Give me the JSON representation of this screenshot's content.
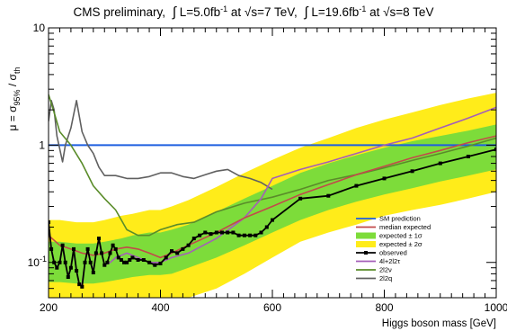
{
  "chart_data": {
    "type": "line",
    "title": {
      "lead": "CMS preliminary,",
      "lumi7_pre": "L=5.0fb",
      "lumi7_exp": "-1",
      "lumi7_mid": " at ",
      "sqrt7": "s=7 TeV,",
      "lumi8_pre": "L=19.6fb",
      "lumi8_exp": "-1",
      "lumi8_mid": " at ",
      "sqrt8": "s=8 TeV"
    },
    "xlabel": "Higgs boson mass [GeV]",
    "ylabel": {
      "main": "μ = σ",
      "sub95": "95%",
      "sep": " / σ",
      "subth": "th"
    },
    "x_range": [
      200,
      1000
    ],
    "y_range": [
      0.05,
      10
    ],
    "y_scale": "log",
    "x_ticks": [
      "200",
      "400",
      "600",
      "800",
      "1000"
    ],
    "y_tick_labels": [
      {
        "value": 10,
        "label": "10"
      },
      {
        "value": 1,
        "label": "1"
      },
      {
        "value": 0.1,
        "label": "10",
        "exp": "-1"
      }
    ],
    "legend_position": "bottom-right",
    "colors": {
      "sm": "#1f5fe0",
      "median": "#c24a4a",
      "band1": "#7ddc3a",
      "band2": "#ffec1a",
      "observed": "#000000",
      "4l2l2t": "#a45fb8",
      "2l2v": "#5a8c2a",
      "2l2q": "#606060"
    },
    "legend": [
      {
        "key": "sm",
        "label": "SM prediction",
        "style": "line"
      },
      {
        "key": "median",
        "label": "median expected",
        "style": "line"
      },
      {
        "key": "band1",
        "label": "expected ± 1σ",
        "style": "box"
      },
      {
        "key": "band2",
        "label": "expected ± 2σ",
        "style": "box"
      },
      {
        "key": "observed",
        "label": "observed",
        "style": "marker"
      },
      {
        "key": "4l2l2t",
        "label": "4l+2l2τ",
        "style": "line"
      },
      {
        "key": "2l2v",
        "label": "2l2ν",
        "style": "line"
      },
      {
        "key": "2l2q",
        "label": "2l2q",
        "style": "line"
      }
    ],
    "sm_prediction": 1,
    "bands": {
      "x": [
        200,
        220,
        250,
        280,
        300,
        330,
        350,
        380,
        400,
        420,
        450,
        500,
        550,
        600,
        650,
        700,
        750,
        800,
        850,
        900,
        950,
        1000
      ],
      "m2": [
        0.05,
        0.05,
        0.05,
        0.05,
        0.05,
        0.05,
        0.05,
        0.05,
        0.05,
        0.05,
        0.05,
        0.06,
        0.08,
        0.11,
        0.15,
        0.18,
        0.21,
        0.25,
        0.28,
        0.31,
        0.35,
        0.4
      ],
      "m1": [
        0.068,
        0.068,
        0.066,
        0.066,
        0.068,
        0.072,
        0.075,
        0.078,
        0.078,
        0.08,
        0.09,
        0.11,
        0.14,
        0.18,
        0.23,
        0.28,
        0.33,
        0.38,
        0.43,
        0.49,
        0.55,
        0.62
      ],
      "p1": [
        0.15,
        0.15,
        0.145,
        0.145,
        0.15,
        0.16,
        0.17,
        0.18,
        0.18,
        0.19,
        0.21,
        0.27,
        0.35,
        0.45,
        0.58,
        0.7,
        0.82,
        0.95,
        1.08,
        1.2,
        1.33,
        1.5
      ],
      "p2": [
        0.23,
        0.23,
        0.22,
        0.22,
        0.23,
        0.25,
        0.26,
        0.28,
        0.28,
        0.3,
        0.34,
        0.44,
        0.58,
        0.75,
        0.95,
        1.15,
        1.4,
        1.65,
        1.9,
        2.2,
        2.5,
        2.8
      ]
    },
    "series": [
      {
        "key": "2l2q",
        "x": [
          200,
          205,
          210,
          215,
          225,
          230,
          240,
          250,
          260,
          270,
          280,
          290,
          300,
          320,
          340,
          360,
          380,
          400,
          420,
          440,
          460,
          480,
          500,
          520,
          540,
          560,
          580,
          600
        ],
        "y": [
          1.6,
          2.4,
          2.0,
          1.2,
          0.72,
          1.0,
          1.4,
          2.4,
          1.3,
          1.0,
          0.85,
          0.65,
          0.55,
          0.55,
          0.52,
          0.52,
          0.54,
          0.58,
          0.58,
          0.54,
          0.52,
          0.56,
          0.6,
          0.62,
          0.55,
          0.52,
          0.48,
          0.42
        ]
      },
      {
        "key": "2l2v",
        "x": [
          200,
          210,
          220,
          240,
          260,
          280,
          300,
          320,
          340,
          360,
          380,
          400,
          430,
          460,
          500,
          550,
          600,
          650,
          700,
          750,
          800,
          850,
          900,
          950,
          1000
        ],
        "y": [
          2.7,
          1.9,
          1.3,
          1.0,
          0.7,
          0.45,
          0.35,
          0.28,
          0.19,
          0.17,
          0.17,
          0.19,
          0.21,
          0.22,
          0.27,
          0.32,
          0.36,
          0.42,
          0.5,
          0.56,
          0.64,
          0.74,
          0.85,
          0.98,
          1.15
        ]
      },
      {
        "key": "4l2l2t",
        "x": [
          200,
          205,
          210,
          215,
          220,
          225,
          230,
          235,
          240,
          245,
          250,
          255,
          260,
          265,
          270,
          275,
          280,
          285,
          290,
          295,
          300,
          310,
          320,
          340,
          360,
          380,
          400,
          420,
          450,
          500,
          550,
          580,
          600,
          650,
          700,
          750,
          800,
          850,
          900,
          950,
          1000
        ],
        "y": [
          0.21,
          0.13,
          0.1,
          0.09,
          0.1,
          0.14,
          0.1,
          0.075,
          0.09,
          0.13,
          0.085,
          0.065,
          0.065,
          0.1,
          0.13,
          0.1,
          0.085,
          0.12,
          0.16,
          0.12,
          0.095,
          0.1,
          0.11,
          0.12,
          0.11,
          0.1,
          0.1,
          0.11,
          0.12,
          0.16,
          0.24,
          0.35,
          0.52,
          0.62,
          0.72,
          0.85,
          1.0,
          1.15,
          1.4,
          1.7,
          2.1
        ]
      },
      {
        "key": "median",
        "x": [
          200,
          220,
          240,
          260,
          280,
          300,
          320,
          340,
          360,
          380,
          400,
          420,
          450,
          500,
          550,
          600,
          650,
          700,
          750,
          800,
          850,
          900,
          950,
          1000
        ],
        "y": [
          0.17,
          0.14,
          0.13,
          0.12,
          0.115,
          0.12,
          0.13,
          0.135,
          0.13,
          0.12,
          0.11,
          0.12,
          0.14,
          0.18,
          0.24,
          0.3,
          0.38,
          0.46,
          0.56,
          0.66,
          0.78,
          0.9,
          1.05,
          1.2
        ]
      },
      {
        "key": "observed",
        "markers": true,
        "x": [
          200,
          205,
          210,
          215,
          220,
          225,
          230,
          235,
          240,
          245,
          250,
          255,
          260,
          265,
          270,
          275,
          280,
          285,
          290,
          295,
          300,
          305,
          310,
          315,
          320,
          325,
          330,
          335,
          340,
          345,
          350,
          360,
          370,
          380,
          390,
          400,
          410,
          420,
          430,
          440,
          450,
          460,
          470,
          480,
          490,
          500,
          510,
          520,
          530,
          540,
          550,
          560,
          570,
          580,
          590,
          600,
          650,
          700,
          750,
          800,
          850,
          900,
          950,
          1000
        ],
        "y": [
          0.22,
          0.13,
          0.1,
          0.09,
          0.1,
          0.14,
          0.1,
          0.075,
          0.09,
          0.13,
          0.085,
          0.065,
          0.062,
          0.1,
          0.13,
          0.1,
          0.082,
          0.12,
          0.16,
          0.12,
          0.095,
          0.1,
          0.12,
          0.14,
          0.13,
          0.11,
          0.105,
          0.1,
          0.1,
          0.105,
          0.11,
          0.105,
          0.105,
          0.1,
          0.095,
          0.098,
          0.11,
          0.125,
          0.12,
          0.13,
          0.14,
          0.16,
          0.17,
          0.18,
          0.175,
          0.18,
          0.18,
          0.18,
          0.18,
          0.17,
          0.17,
          0.17,
          0.17,
          0.18,
          0.2,
          0.23,
          0.35,
          0.37,
          0.45,
          0.52,
          0.6,
          0.7,
          0.8,
          0.92
        ]
      }
    ]
  }
}
